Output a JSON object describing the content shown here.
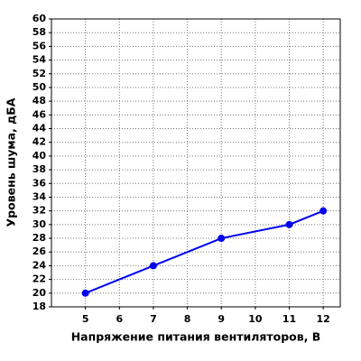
{
  "chart_data": {
    "type": "line",
    "x_label": "Напряжение питания вентиляторов, В",
    "y_label": "Уровень шума, дБА",
    "series": [
      {
        "x": [
          5,
          7,
          9,
          11,
          12
        ],
        "values": [
          20,
          24,
          28,
          30,
          32
        ],
        "color": "#0000ee"
      }
    ],
    "xlim": [
      4,
      12.5
    ],
    "xticks": [
      5,
      6,
      7,
      8,
      9,
      10,
      11,
      12
    ],
    "ylim": [
      18,
      60
    ],
    "yticks": [
      18,
      20,
      22,
      24,
      26,
      28,
      30,
      32,
      34,
      36,
      38,
      40,
      42,
      44,
      46,
      48,
      50,
      52,
      54,
      56,
      58,
      60
    ],
    "grid": true
  }
}
